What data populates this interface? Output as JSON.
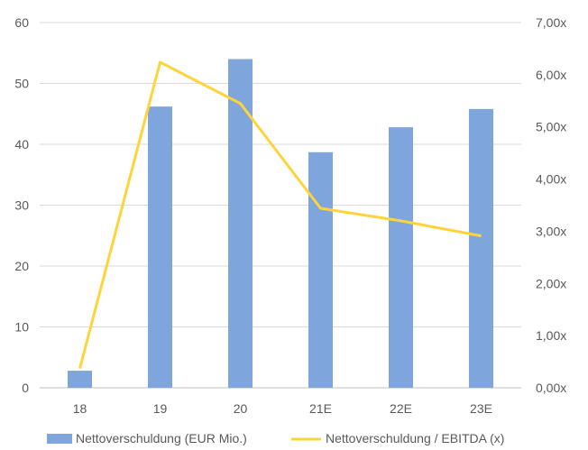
{
  "chart_data": {
    "type": "bar",
    "categories": [
      "18",
      "19",
      "20",
      "21E",
      "22E",
      "23E"
    ],
    "series": [
      {
        "name": "Nettoverschuldung  (EUR Mio.)",
        "type": "bar",
        "axis": "left",
        "color": "#7ea6dc",
        "values": [
          2.8,
          46.2,
          54.0,
          38.7,
          42.8,
          45.8
        ]
      },
      {
        "name": "Nettoverschuldung / EBITDA (x)",
        "type": "line",
        "axis": "right",
        "color": "#ffd43b",
        "values": [
          0.37,
          6.24,
          5.45,
          3.44,
          3.2,
          2.91
        ]
      }
    ],
    "y_left": {
      "ylim": [
        0,
        60
      ],
      "ticks": [
        0,
        10,
        20,
        30,
        40,
        50,
        60
      ],
      "tick_labels": [
        "0",
        "10",
        "20",
        "30",
        "40",
        "50",
        "60"
      ]
    },
    "y_right": {
      "ylim": [
        0,
        7
      ],
      "ticks": [
        0,
        1,
        2,
        3,
        4,
        5,
        6,
        7
      ],
      "tick_labels": [
        "0,00x",
        "1,00x",
        "2,00x",
        "3,00x",
        "4,00x",
        "5,00x",
        "6,00x",
        "7,00x"
      ]
    },
    "grid": true,
    "legend_position": "bottom"
  }
}
